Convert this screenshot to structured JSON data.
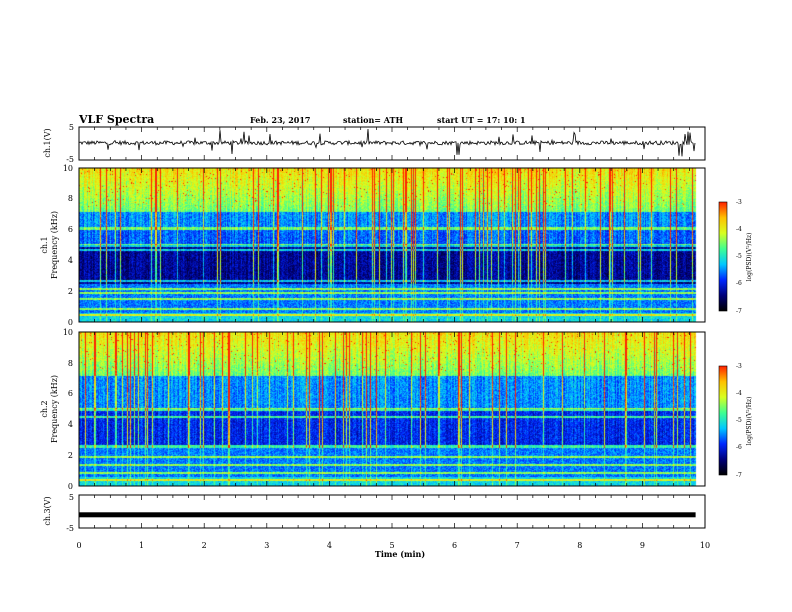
{
  "header": {
    "title": "VLF Spectra",
    "date": "Feb. 23, 2017",
    "station": "station= ATH",
    "start": "start  UT =   17: 10: 1"
  },
  "colors": {
    "colormap": [
      "#000000",
      "#00007a",
      "#0028ff",
      "#00c8ff",
      "#40ff90",
      "#d8ff20",
      "#ffc000",
      "#ff2000",
      "#ffffff"
    ]
  },
  "chart_data": [
    {
      "type": "line",
      "ylabel": "ch.1(V)",
      "ylim": [
        -5,
        5
      ],
      "yticks": [
        "5",
        "-5"
      ],
      "description_level": 0.2
    },
    {
      "type": "heatmap",
      "ylabel_line1": "ch.1",
      "ylabel_line2": "Frequency  (kHz)",
      "ylim": [
        0,
        10
      ],
      "yticks": [
        "0",
        "2",
        "4",
        "6",
        "8",
        "10"
      ],
      "colorbar": {
        "label": "log(PSD)(V²/Hz)",
        "range": [
          -7,
          -3
        ],
        "ticks": [
          "-3",
          "-4",
          "-5",
          "-6",
          "-7"
        ]
      }
    },
    {
      "type": "heatmap",
      "ylabel_line1": "ch.2",
      "ylabel_line2": "Frequency  (kHz)",
      "ylim": [
        0,
        10
      ],
      "yticks": [
        "0",
        "2",
        "4",
        "6",
        "8",
        "10"
      ],
      "colorbar": {
        "label": "log(PSD)(V²/Hz)",
        "range": [
          -7,
          -3
        ],
        "ticks": [
          "-3",
          "-4",
          "-5",
          "-6",
          "-7"
        ]
      }
    },
    {
      "type": "line",
      "ylabel": "ch.3(V)",
      "ylim": [
        -5,
        5
      ],
      "yticks": [
        "5",
        "-5"
      ],
      "level": -1
    }
  ],
  "x_axis": {
    "label": "Time  (min)",
    "range": [
      0,
      10
    ],
    "ticks": [
      "0",
      "1",
      "2",
      "3",
      "4",
      "5",
      "6",
      "7",
      "8",
      "9",
      "10"
    ],
    "data_end": 9.85
  }
}
